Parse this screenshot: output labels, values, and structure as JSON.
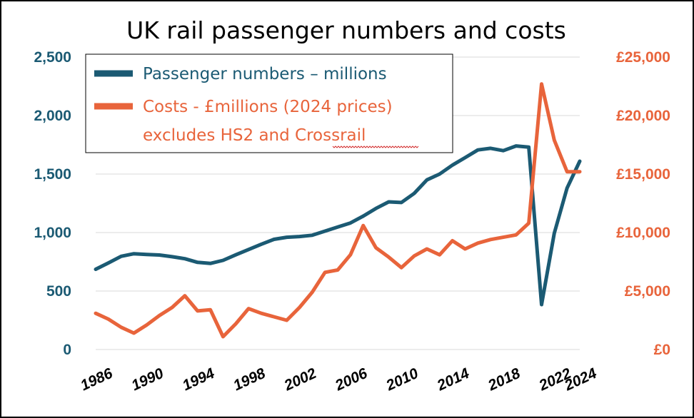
{
  "chart_data": {
    "type": "line",
    "title": "UK rail passenger numbers and costs",
    "x": [
      1986,
      1987,
      1988,
      1989,
      1990,
      1991,
      1992,
      1993,
      1994,
      1995,
      1996,
      1997,
      1998,
      1999,
      2000,
      2001,
      2002,
      2003,
      2004,
      2005,
      2006,
      2007,
      2008,
      2009,
      2010,
      2011,
      2012,
      2013,
      2014,
      2015,
      2016,
      2017,
      2018,
      2019,
      2020,
      2021,
      2022,
      2023,
      2024
    ],
    "xlim": [
      1986,
      2024
    ],
    "xticks": [
      "1986",
      "1990",
      "1994",
      "1998",
      "2002",
      "2006",
      "2010",
      "2014",
      "2018",
      "2022",
      "2024"
    ],
    "xtick_values": [
      1986,
      1990,
      1994,
      1998,
      2002,
      2006,
      2010,
      2014,
      2018,
      2022,
      2024
    ],
    "y_left": {
      "ylim": [
        0,
        2500
      ],
      "ticks": [
        0,
        500,
        1000,
        1500,
        2000,
        2500
      ],
      "tick_labels": [
        "0",
        "500",
        "1,000",
        "1,500",
        "2,000",
        "2,500"
      ],
      "color": "#1b5a73"
    },
    "y_right": {
      "ylim": [
        0,
        25000
      ],
      "ticks": [
        0,
        5000,
        10000,
        15000,
        20000,
        25000
      ],
      "tick_labels": [
        "£0",
        "£5,000",
        "£10,000",
        "£15,000",
        "£20,000",
        "£25,000"
      ],
      "color": "#e8643b"
    },
    "grid": true,
    "legend_position": "top-left",
    "series": [
      {
        "name": "Passenger numbers – millions",
        "axis": "left",
        "color": "#1b5a73",
        "x": [
          1986,
          1987,
          1988,
          1989,
          1990,
          1991,
          1992,
          1993,
          1994,
          1995,
          1996,
          1997,
          1998,
          1999,
          2000,
          2001,
          2002,
          2003,
          2004,
          2005,
          2006,
          2007,
          2008,
          2009,
          2010,
          2011,
          2012,
          2013,
          2014,
          2015,
          2016,
          2017,
          2018,
          2019,
          2020,
          2021,
          2022,
          2023,
          2024
        ],
        "values": [
          686,
          740,
          797,
          819,
          812,
          808,
          793,
          776,
          745,
          736,
          762,
          810,
          855,
          900,
          942,
          960,
          966,
          977,
          1012,
          1047,
          1082,
          1140,
          1206,
          1262,
          1257,
          1335,
          1450,
          1500,
          1576,
          1640,
          1706,
          1720,
          1700,
          1740,
          1730,
          384,
          994,
          1380,
          1610
        ]
      },
      {
        "name": "Costs - £millions (2024 prices) excludes HS2 and Crossrail",
        "legend_lines": [
          "Costs - £millions (2024 prices)",
          "excludes HS2 and Crossrail"
        ],
        "axis": "right",
        "color": "#e8643b",
        "x": [
          1986,
          1987,
          1988,
          1989,
          1990,
          1991,
          1992,
          1993,
          1994,
          1995,
          1996,
          1997,
          1998,
          1999,
          2000,
          2001,
          2002,
          2003,
          2004,
          2005,
          2006,
          2007,
          2008,
          2009,
          2010,
          2011,
          2012,
          2013,
          2014,
          2015,
          2016,
          2017,
          2018,
          2019,
          2020,
          2021,
          2022,
          2023,
          2024
        ],
        "values": [
          3100,
          2600,
          1900,
          1400,
          2100,
          2900,
          3600,
          4600,
          3300,
          3400,
          1100,
          2200,
          3500,
          3100,
          2800,
          2500,
          3600,
          4900,
          6600,
          6800,
          8100,
          10600,
          8700,
          7900,
          7000,
          8000,
          8600,
          8100,
          9300,
          8600,
          9100,
          9400,
          9600,
          9800,
          10800,
          22700,
          17900,
          15200,
          15200
        ]
      }
    ]
  }
}
